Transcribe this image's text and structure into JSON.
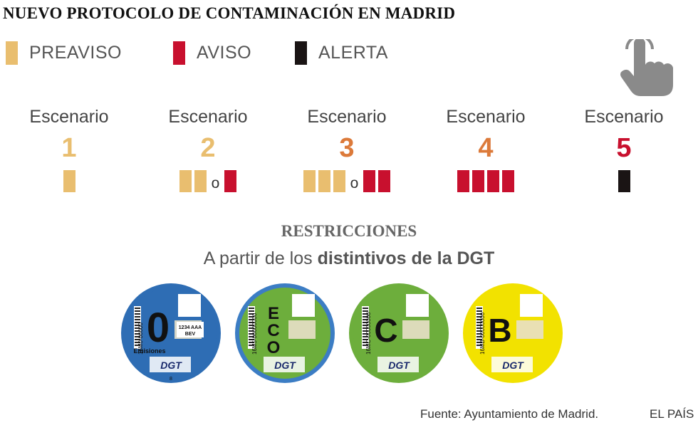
{
  "title": "NUEVO PROTOCOLO DE CONTAMINACIÓN EN MADRID",
  "legend": [
    {
      "label": "PREAVISO",
      "color": "#E9BE6F"
    },
    {
      "label": "AVISO",
      "color": "#C8102E"
    },
    {
      "label": "ALERTA",
      "color": "#1A1414"
    }
  ],
  "interaction_icon": "pointing-hand-icon",
  "scenarios": [
    {
      "label": "Escenario",
      "number": "1",
      "number_color": "#E9BE6F",
      "levels": {
        "preaviso": 1,
        "aviso": 0,
        "alerta": 0
      },
      "separator": ""
    },
    {
      "label": "Escenario",
      "number": "2",
      "number_color": "#E9BE6F",
      "levels": {
        "preaviso": 2,
        "aviso": 1,
        "alerta": 0
      },
      "separator": "o"
    },
    {
      "label": "Escenario",
      "number": "3",
      "number_color": "#DC7A3A",
      "levels": {
        "preaviso": 3,
        "aviso": 2,
        "alerta": 0
      },
      "separator": "o"
    },
    {
      "label": "Escenario",
      "number": "4",
      "number_color": "#DC7A3A",
      "levels": {
        "preaviso": 0,
        "aviso": 4,
        "alerta": 0
      },
      "separator": ""
    },
    {
      "label": "Escenario",
      "number": "5",
      "number_color": "#C8102E",
      "levels": {
        "preaviso": 0,
        "aviso": 0,
        "alerta": 1
      },
      "separator": ""
    }
  ],
  "restrictions": {
    "heading": "RESTRICCIONES",
    "subtitle_prefix": "A partir de los ",
    "subtitle_bold": "distintivos de la DGT"
  },
  "badges": [
    {
      "letter": "0",
      "ring": "#2E6DB4",
      "fill": "#2E6DB4",
      "caption": "Emisiones",
      "plate": "1234 AAA",
      "plate2": "BEV",
      "code": "16M0-00000",
      "logo": "DGT",
      "extra": "8"
    },
    {
      "letter": "ECO",
      "ring": "#3C7DC4",
      "fill": "#6DAE3C",
      "code": "16M5-00000000",
      "logo": "DGT"
    },
    {
      "letter": "C",
      "ring": "#6DAE3C",
      "fill": "#6DAE3C",
      "code": "16MC-00000000",
      "logo": "DGT"
    },
    {
      "letter": "B",
      "ring": "#F2E200",
      "fill": "#F2E200",
      "code": "16MB-00000000",
      "logo": "DGT"
    }
  ],
  "footer": {
    "source": "Fuente: Ayuntamiento de Madrid.",
    "brand": "EL PAÍS"
  }
}
